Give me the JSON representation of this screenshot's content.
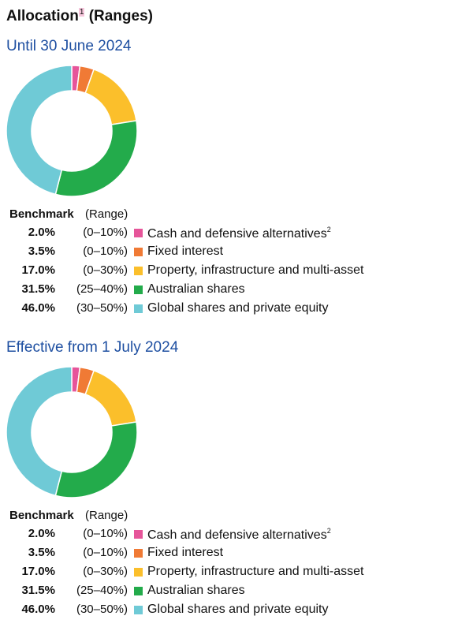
{
  "title": "Allocation",
  "title_note": "1",
  "title_suffix": "(Ranges)",
  "colors": {
    "cash": "#e6559a",
    "fixed": "#f07a35",
    "property": "#fbbf2b",
    "australian": "#23ab4b",
    "global": "#6fcad6"
  },
  "chart_data": [
    {
      "type": "pie",
      "title": "Until 30 June 2024",
      "table_headers": {
        "benchmark": "Benchmark",
        "range": "(Range)"
      },
      "slices": [
        {
          "label": "Cash and defensive alternatives",
          "note": "2",
          "value": 2.0,
          "value_label": "2.0%",
          "range": "(0–10%)",
          "color": "#e6559a"
        },
        {
          "label": "Fixed interest",
          "note": "",
          "value": 3.5,
          "value_label": "3.5%",
          "range": "(0–10%)",
          "color": "#f07a35"
        },
        {
          "label": "Property, infrastructure and multi-asset",
          "note": "",
          "value": 17.0,
          "value_label": "17.0%",
          "range": "(0–30%)",
          "color": "#fbbf2b"
        },
        {
          "label": "Australian shares",
          "note": "",
          "value": 31.5,
          "value_label": "31.5%",
          "range": "(25–40%)",
          "color": "#23ab4b"
        },
        {
          "label": "Global shares and private equity",
          "note": "",
          "value": 46.0,
          "value_label": "46.0%",
          "range": "(30–50%)",
          "color": "#6fcad6"
        }
      ]
    },
    {
      "type": "pie",
      "title": "Effective from 1 July 2024",
      "table_headers": {
        "benchmark": "Benchmark",
        "range": "(Range)"
      },
      "slices": [
        {
          "label": "Cash and defensive alternatives",
          "note": "2",
          "value": 2.0,
          "value_label": "2.0%",
          "range": "(0–10%)",
          "color": "#e6559a"
        },
        {
          "label": "Fixed interest",
          "note": "",
          "value": 3.5,
          "value_label": "3.5%",
          "range": "(0–10%)",
          "color": "#f07a35"
        },
        {
          "label": "Property, infrastructure and multi-asset",
          "note": "",
          "value": 17.0,
          "value_label": "17.0%",
          "range": "(0–30%)",
          "color": "#fbbf2b"
        },
        {
          "label": "Australian shares",
          "note": "",
          "value": 31.5,
          "value_label": "31.5%",
          "range": "(25–40%)",
          "color": "#23ab4b"
        },
        {
          "label": "Global shares and private equity",
          "note": "",
          "value": 46.0,
          "value_label": "46.0%",
          "range": "(30–50%)",
          "color": "#6fcad6"
        }
      ]
    }
  ]
}
